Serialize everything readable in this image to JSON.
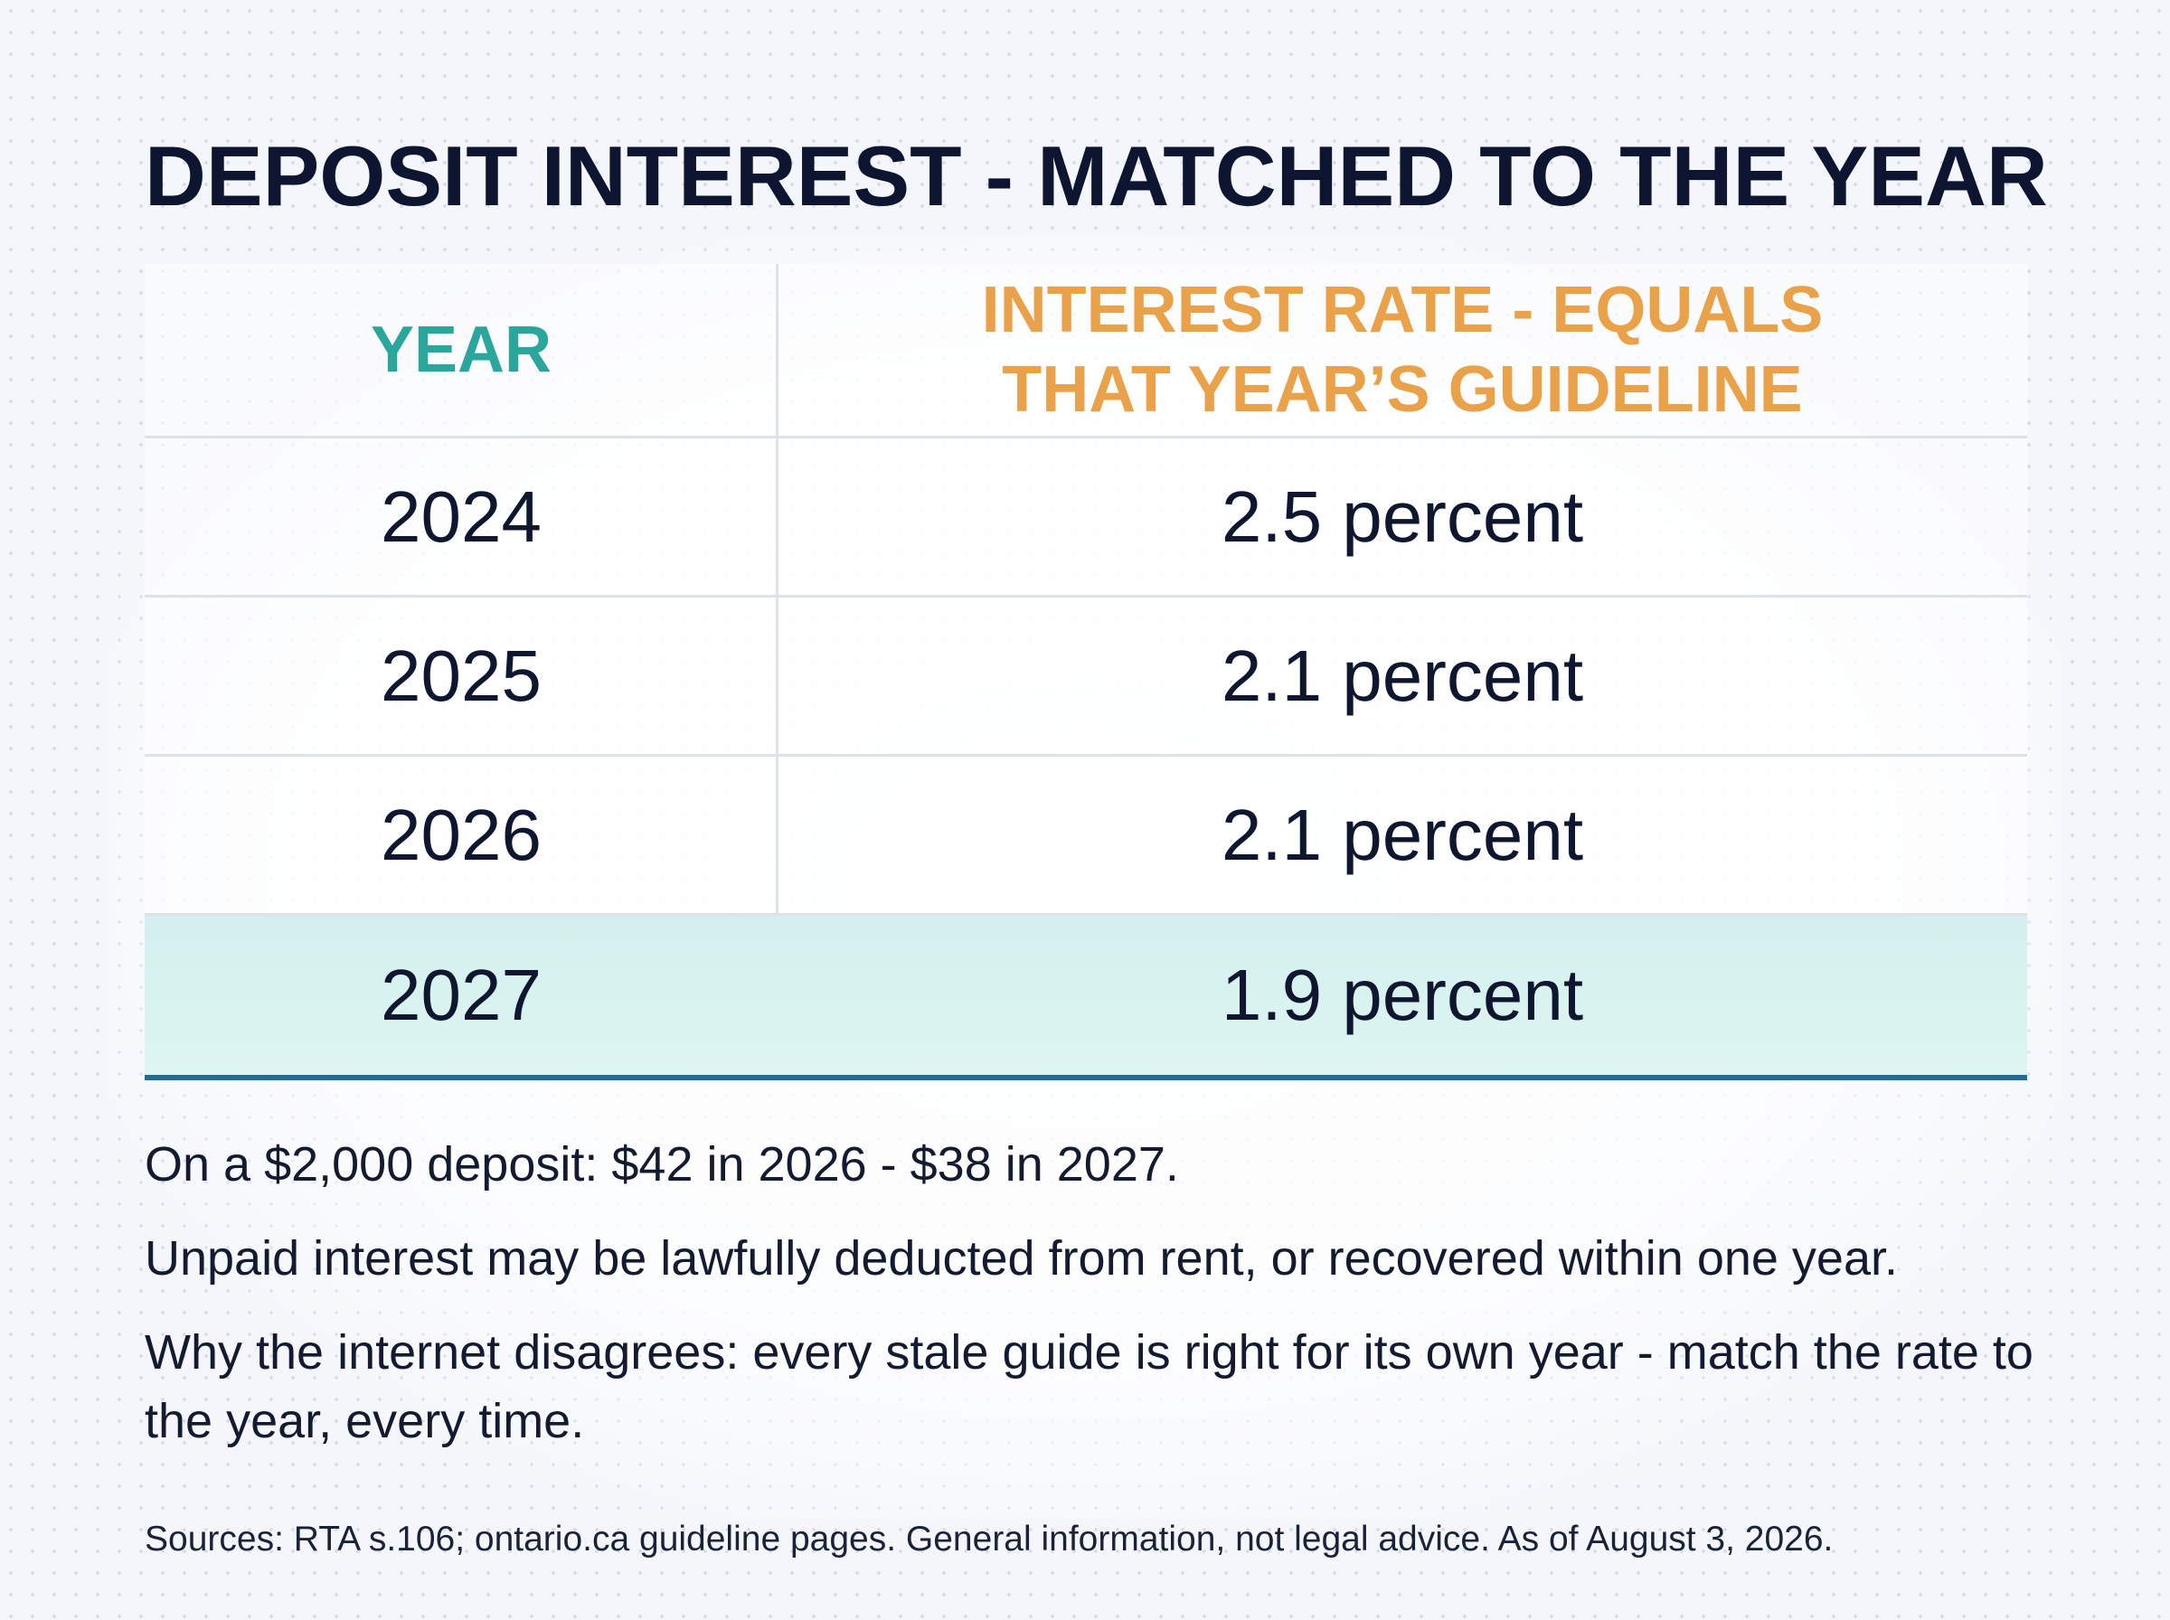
{
  "title": "DEPOSIT INTEREST - MATCHED TO THE YEAR",
  "table": {
    "header_year": "YEAR",
    "header_rate_line1": "INTEREST RATE - EQUALS",
    "header_rate_line2": "THAT YEAR’S GUIDELINE",
    "rows": [
      {
        "year": "2024",
        "rate": "2.5 percent"
      },
      {
        "year": "2025",
        "rate": "2.1 percent"
      },
      {
        "year": "2026",
        "rate": "2.1 percent"
      },
      {
        "year": "2027",
        "rate": "1.9 percent"
      }
    ]
  },
  "notes": {
    "example": "On a $2,000 deposit: $42 in 2026 - $38 in 2027.",
    "deduction": "Unpaid interest may be lawfully deducted from rent, or recovered within one year.",
    "why": "Why the internet disagrees: every stale guide is right for its own year - match the rate to the year, every time."
  },
  "sources": "Sources: RTA s.106; ontario.ca guideline pages. General information, not legal advice. As of August 3, 2026.",
  "colors": {
    "title": "#0d1530",
    "year_header": "#2aa69c",
    "rate_header": "#eaa24a",
    "highlight_row": "#d9f3f0",
    "highlight_border": "#1e6d96"
  }
}
